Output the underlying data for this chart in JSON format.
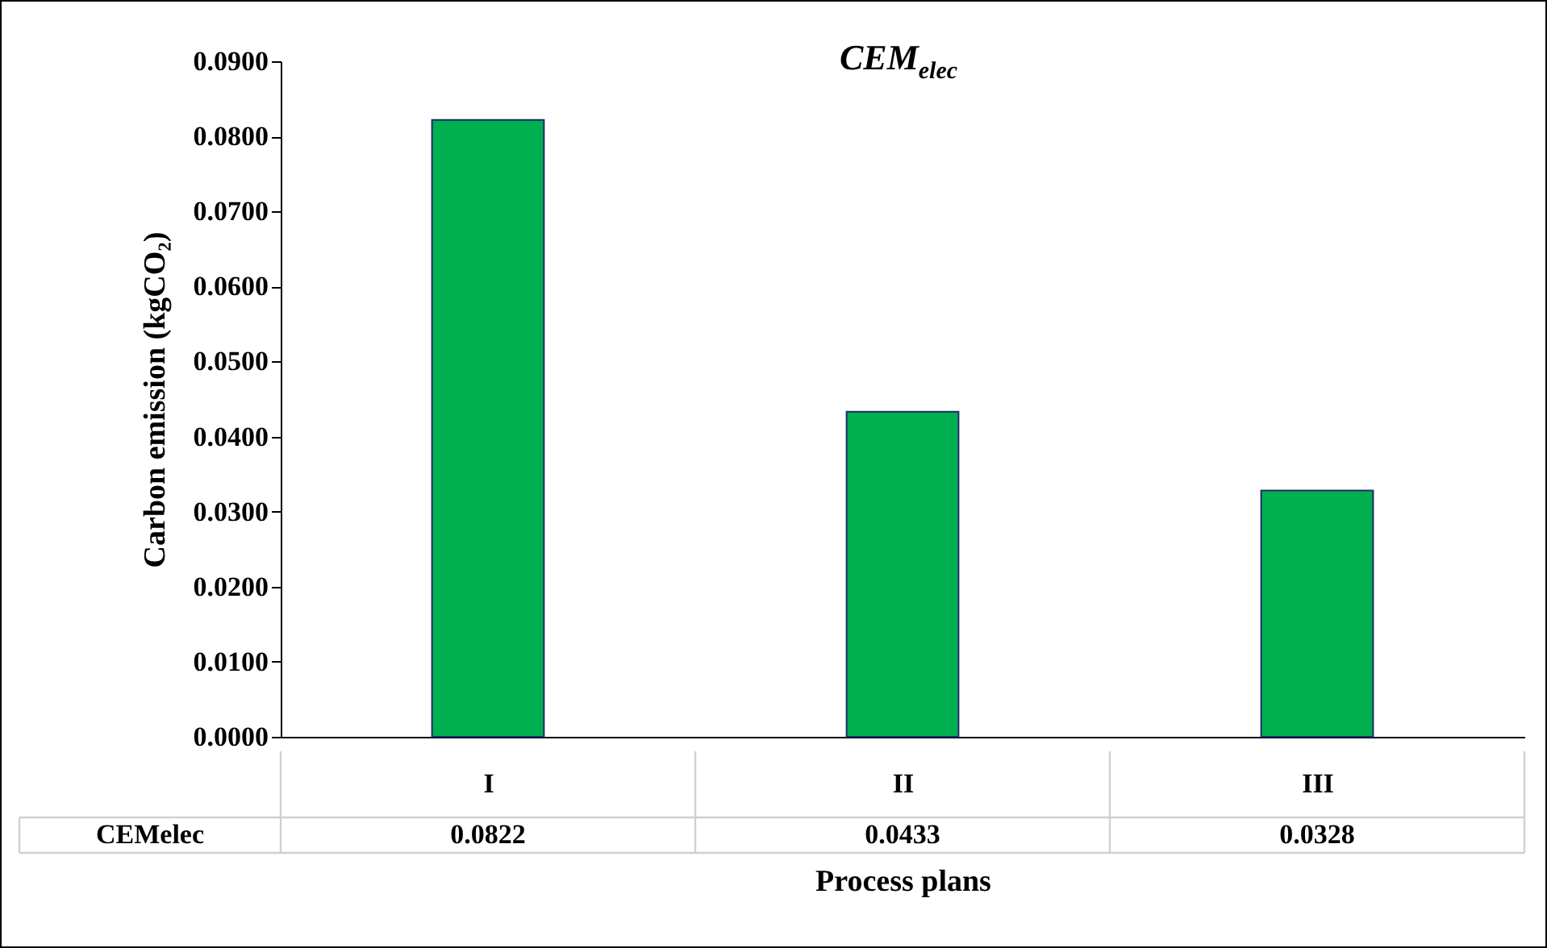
{
  "chart_data": {
    "type": "bar",
    "title": "CEM$_{elec}$",
    "xlabel": "Process plans",
    "ylabel": "Carbon emission  (kgCO₂)",
    "categories": [
      "I",
      "II",
      "III"
    ],
    "series": [
      {
        "name": "CEMelec",
        "color": "#00b050",
        "values": [
          0.0822,
          0.0433,
          0.0328
        ]
      }
    ],
    "ylim": [
      0,
      0.09
    ],
    "yticks": [
      {
        "value": 0,
        "label": "0.0000"
      },
      {
        "value": 0.01,
        "label": "0.0100"
      },
      {
        "value": 0.02,
        "label": "0.0200"
      },
      {
        "value": 0.03,
        "label": "0.0300"
      },
      {
        "value": 0.04,
        "label": "0.0400"
      },
      {
        "value": 0.05,
        "label": "0.0500"
      },
      {
        "value": 0.06,
        "label": "0.0600"
      },
      {
        "value": 0.07,
        "label": "0.0700"
      },
      {
        "value": 0.08,
        "label": "0.0800"
      },
      {
        "value": 0.09,
        "label": "0.0900"
      }
    ],
    "data_labels": true,
    "grid": false
  }
}
